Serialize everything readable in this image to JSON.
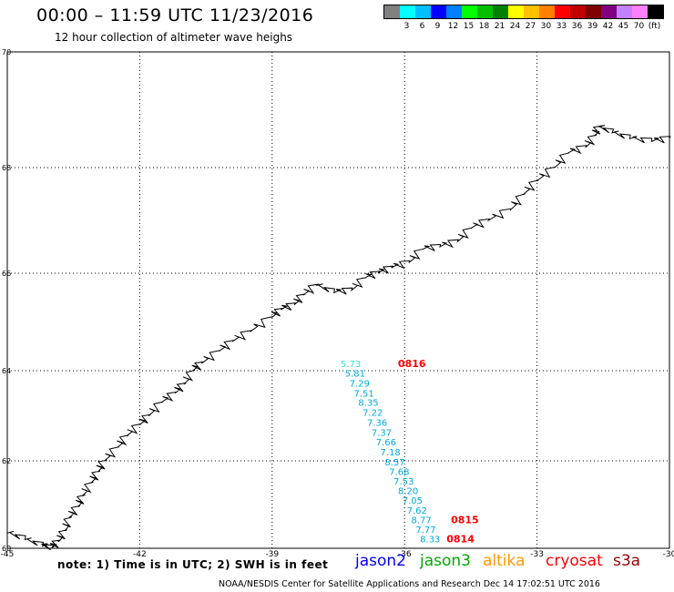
{
  "header": {
    "title": "00:00 – 11:59 UTC 11/23/2016",
    "subtitle": "12 hour collection of altimeter wave heighs"
  },
  "legend": {
    "colors": [
      "#808080",
      "#00ffff",
      "#00bfff",
      "#0000ff",
      "#0080ff",
      "#00ff00",
      "#00c000",
      "#008000",
      "#ffff00",
      "#ffc000",
      "#ff8000",
      "#ff0000",
      "#c00000",
      "#800000",
      "#800080",
      "#c080ff",
      "#ff80ff",
      "#000000"
    ],
    "labels": [
      "",
      "3",
      "6",
      "9",
      "12",
      "15",
      "18",
      "21",
      "24",
      "27",
      "30",
      "33",
      "36",
      "39",
      "42",
      "45",
      "70",
      "(ft)"
    ]
  },
  "map_extent": {
    "lon_min": -45,
    "lon_max": -30,
    "lat_min": 60,
    "lat_max": 70
  },
  "axes": {
    "lon_ticks": [
      -45,
      -42,
      -39,
      -36,
      -33,
      -30
    ],
    "lat_ticks": [
      60,
      62,
      64,
      66,
      68,
      70
    ]
  },
  "track": {
    "color": "#00aadd",
    "first_color": "#33dddd",
    "points": [
      {
        "lon": -37.45,
        "lat": 64.15,
        "swh": "5.73"
      },
      {
        "lon": -37.35,
        "lat": 63.95,
        "swh": "5.81"
      },
      {
        "lon": -37.25,
        "lat": 63.73,
        "swh": "7.29"
      },
      {
        "lon": -37.15,
        "lat": 63.51,
        "swh": "7.51"
      },
      {
        "lon": -37.05,
        "lat": 63.3,
        "swh": "8.35"
      },
      {
        "lon": -36.95,
        "lat": 63.08,
        "swh": "7.22"
      },
      {
        "lon": -36.85,
        "lat": 62.86,
        "swh": "7.36"
      },
      {
        "lon": -36.75,
        "lat": 62.64,
        "swh": "7.37"
      },
      {
        "lon": -36.65,
        "lat": 62.42,
        "swh": "7.66"
      },
      {
        "lon": -36.55,
        "lat": 62.2,
        "swh": "7.18"
      },
      {
        "lon": -36.45,
        "lat": 61.98,
        "swh": "8.57"
      },
      {
        "lon": -36.35,
        "lat": 61.76,
        "swh": "7.68"
      },
      {
        "lon": -36.25,
        "lat": 61.54,
        "swh": "7.53"
      },
      {
        "lon": -36.15,
        "lat": 61.32,
        "swh": "8.20"
      },
      {
        "lon": -36.05,
        "lat": 61.1,
        "swh": "7.05"
      },
      {
        "lon": -35.95,
        "lat": 60.88,
        "swh": "7.62"
      },
      {
        "lon": -35.85,
        "lat": 60.66,
        "swh": "8.77"
      },
      {
        "lon": -35.75,
        "lat": 60.44,
        "swh": "7.77"
      },
      {
        "lon": -35.65,
        "lat": 60.22,
        "swh": "8.33"
      }
    ],
    "times": [
      {
        "lon": -36.15,
        "lat": 64.15,
        "text": "0816"
      },
      {
        "lon": -34.95,
        "lat": 60.66,
        "text": "0815"
      },
      {
        "lon": -35.05,
        "lat": 60.22,
        "text": "0814"
      }
    ],
    "time_color": "#ff0000"
  },
  "coastline": [
    [
      -45.0,
      60.35
    ],
    [
      -44.6,
      60.2
    ],
    [
      -44.2,
      60.05
    ],
    [
      -44.0,
      60.0
    ],
    [
      -43.85,
      60.15
    ],
    [
      -43.7,
      60.4
    ],
    [
      -43.6,
      60.7
    ],
    [
      -43.4,
      60.95
    ],
    [
      -43.3,
      61.2
    ],
    [
      -43.1,
      61.5
    ],
    [
      -42.95,
      61.75
    ],
    [
      -42.8,
      62.0
    ],
    [
      -42.5,
      62.3
    ],
    [
      -42.3,
      62.55
    ],
    [
      -42.0,
      62.8
    ],
    [
      -41.8,
      63.0
    ],
    [
      -41.5,
      63.3
    ],
    [
      -41.2,
      63.5
    ],
    [
      -41.0,
      63.7
    ],
    [
      -40.8,
      64.0
    ],
    [
      -40.6,
      64.15
    ],
    [
      -40.2,
      64.4
    ],
    [
      -39.9,
      64.6
    ],
    [
      -39.5,
      64.8
    ],
    [
      -39.0,
      65.1
    ],
    [
      -38.8,
      65.25
    ],
    [
      -38.5,
      65.35
    ],
    [
      -38.3,
      65.55
    ],
    [
      -38.0,
      65.75
    ],
    [
      -37.6,
      65.6
    ],
    [
      -37.2,
      65.65
    ],
    [
      -36.9,
      65.9
    ],
    [
      -36.6,
      66.0
    ],
    [
      -36.3,
      66.1
    ],
    [
      -35.9,
      66.2
    ],
    [
      -35.6,
      66.45
    ],
    [
      -35.2,
      66.5
    ],
    [
      -34.8,
      66.6
    ],
    [
      -34.5,
      66.85
    ],
    [
      -34.1,
      67.0
    ],
    [
      -33.6,
      67.2
    ],
    [
      -33.3,
      67.5
    ],
    [
      -33.0,
      67.75
    ],
    [
      -32.6,
      68.0
    ],
    [
      -32.3,
      68.25
    ],
    [
      -31.9,
      68.35
    ],
    [
      -31.7,
      68.55
    ],
    [
      -31.6,
      68.7
    ],
    [
      -31.3,
      68.6
    ],
    [
      -30.9,
      68.5
    ],
    [
      -30.4,
      68.45
    ],
    [
      -30.0,
      68.5
    ]
  ],
  "note": "note:  1) Time is in UTC;  2) SWH is in feet",
  "satellites": [
    {
      "name": "jason2",
      "color": "#0000ff"
    },
    {
      "name": "jason3",
      "color": "#00aa00"
    },
    {
      "name": "altika",
      "color": "#ff9900"
    },
    {
      "name": "cryosat",
      "color": "#ff0000"
    },
    {
      "name": "s3a",
      "color": "#990000"
    }
  ],
  "footer": "NOAA/NESDIS Center for Satellite Applications and Research     Dec 14 17:02:51 UTC 2016"
}
